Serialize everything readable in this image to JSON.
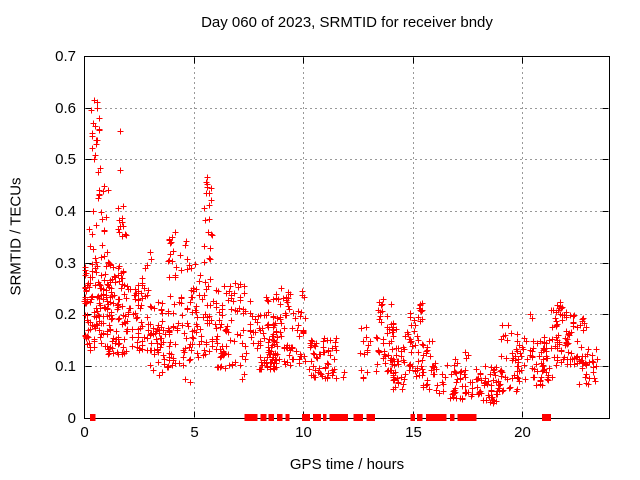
{
  "window": {
    "background": "#ffffff"
  },
  "chart_data": {
    "type": "scatter",
    "title": "Day 060 of 2023, SRMTID for receiver bndy",
    "xlabel": "GPS time / hours",
    "ylabel": "SRMTID / TECUs",
    "xlim": [
      0,
      24
    ],
    "ylim": [
      0,
      0.7
    ],
    "x_ticks": [
      0,
      5,
      10,
      15,
      20
    ],
    "x_tick_labels": [
      "0",
      "5",
      "10",
      "15",
      "20"
    ],
    "y_ticks": [
      0,
      0.1,
      0.2,
      0.3,
      0.4,
      0.5,
      0.6,
      0.7
    ],
    "y_tick_labels": [
      "0",
      "0.1",
      "0.2",
      "0.3",
      "0.4",
      "0.5",
      "0.6",
      "0.7"
    ],
    "grid": true,
    "legend": "none",
    "marker": "plus",
    "marker_color": "#ff0000",
    "axis_color": "#000000",
    "grid_color": "#999999",
    "seed": 42,
    "clusters": [
      {
        "x": [
          0.02,
          0.15
        ],
        "y": [
          0.15,
          0.31
        ],
        "n": 22,
        "skew": 1.0
      },
      {
        "x": [
          0.3,
          0.72
        ],
        "y": [
          0.55,
          0.62
        ],
        "n": 9,
        "skew": 1.0
      },
      {
        "x": [
          0.32,
          0.75
        ],
        "y": [
          0.46,
          0.545
        ],
        "n": 9,
        "skew": 1.0
      },
      {
        "x": [
          0.55,
          0.9
        ],
        "y": [
          0.4,
          0.455
        ],
        "n": 6,
        "skew": 1.0
      },
      {
        "x": [
          0.2,
          1.2
        ],
        "y": [
          0.28,
          0.4
        ],
        "n": 26,
        "skew": 1.1
      },
      {
        "x": [
          0.12,
          1.25
        ],
        "y": [
          0.13,
          0.28
        ],
        "n": 80,
        "skew": 1.0
      },
      {
        "x": [
          1.0,
          2.1
        ],
        "y": [
          0.12,
          0.3
        ],
        "n": 90,
        "skew": 1.25
      },
      {
        "x": [
          1.55,
          1.95
        ],
        "y": [
          0.3,
          0.415
        ],
        "n": 12,
        "skew": 1.0
      },
      {
        "x": [
          2.1,
          2.65
        ],
        "y": [
          0.13,
          0.26
        ],
        "n": 35,
        "skew": 1.15
      },
      {
        "x": [
          2.6,
          3.05
        ],
        "y": [
          0.13,
          0.335
        ],
        "n": 28,
        "skew": 1.3
      },
      {
        "x": [
          3.0,
          3.95
        ],
        "y": [
          0.09,
          0.225
        ],
        "n": 50,
        "skew": 1.15
      },
      {
        "x": [
          3.85,
          4.7
        ],
        "y": [
          0.1,
          0.36
        ],
        "n": 55,
        "skew": 1.45
      },
      {
        "x": [
          4.65,
          5.35
        ],
        "y": [
          0.11,
          0.3
        ],
        "n": 40,
        "skew": 1.35
      },
      {
        "x": [
          5.4,
          5.85
        ],
        "y": [
          0.25,
          0.465
        ],
        "n": 22,
        "skew": 1.0
      },
      {
        "x": [
          5.3,
          6.15
        ],
        "y": [
          0.12,
          0.25
        ],
        "n": 35,
        "skew": 1.0
      },
      {
        "x": [
          6.0,
          7.4
        ],
        "y": [
          0.095,
          0.26
        ],
        "n": 70,
        "skew": 1.2
      },
      {
        "x": [
          7.45,
          8.0
        ],
        "y": [
          0.13,
          0.235
        ],
        "n": 14,
        "skew": 1.0
      },
      {
        "x": [
          7.95,
          8.85
        ],
        "y": [
          0.09,
          0.2
        ],
        "n": 45,
        "skew": 1.1
      },
      {
        "x": [
          8.2,
          9.2
        ],
        "y": [
          0.09,
          0.24
        ],
        "n": 55,
        "skew": 1.2
      },
      {
        "x": [
          9.2,
          10.1
        ],
        "y": [
          0.1,
          0.245
        ],
        "n": 45,
        "skew": 1.2
      },
      {
        "x": [
          10.25,
          11.55
        ],
        "y": [
          0.075,
          0.155
        ],
        "n": 60,
        "skew": 1.1
      },
      {
        "x": [
          12.55,
          13.05
        ],
        "y": [
          0.07,
          0.2
        ],
        "n": 14,
        "skew": 1.0
      },
      {
        "x": [
          13.3,
          14.1
        ],
        "y": [
          0.09,
          0.23
        ],
        "n": 45,
        "skew": 1.35
      },
      {
        "x": [
          14.0,
          14.85
        ],
        "y": [
          0.05,
          0.185
        ],
        "n": 40,
        "skew": 1.15
      },
      {
        "x": [
          14.8,
          15.45
        ],
        "y": [
          0.08,
          0.205
        ],
        "n": 35,
        "skew": 1.25
      },
      {
        "x": [
          15.3,
          15.45
        ],
        "y": [
          0.19,
          0.222
        ],
        "n": 6,
        "skew": 1.0
      },
      {
        "x": [
          15.45,
          16.05
        ],
        "y": [
          0.055,
          0.15
        ],
        "n": 25,
        "skew": 1.25
      },
      {
        "x": [
          16.05,
          16.5
        ],
        "y": [
          0.045,
          0.085
        ],
        "n": 8,
        "skew": 1.0
      },
      {
        "x": [
          16.55,
          17.25
        ],
        "y": [
          0.035,
          0.115
        ],
        "n": 28,
        "skew": 1.15
      },
      {
        "x": [
          17.35,
          17.75
        ],
        "y": [
          0.04,
          0.128
        ],
        "n": 16,
        "skew": 1.15
      },
      {
        "x": [
          17.85,
          19.05
        ],
        "y": [
          0.028,
          0.1
        ],
        "n": 60,
        "skew": 1.15
      },
      {
        "x": [
          19.0,
          19.75
        ],
        "y": [
          0.05,
          0.19
        ],
        "n": 30,
        "skew": 1.45
      },
      {
        "x": [
          19.7,
          20.3
        ],
        "y": [
          0.07,
          0.165
        ],
        "n": 22,
        "skew": 1.25
      },
      {
        "x": [
          20.3,
          20.95
        ],
        "y": [
          0.06,
          0.15
        ],
        "n": 25,
        "skew": 1.25
      },
      {
        "x": [
          20.9,
          21.35
        ],
        "y": [
          0.07,
          0.165
        ],
        "n": 28,
        "skew": 1.15
      },
      {
        "x": [
          21.3,
          22.05
        ],
        "y": [
          0.1,
          0.225
        ],
        "n": 45,
        "skew": 0.8
      },
      {
        "x": [
          22.0,
          22.9
        ],
        "y": [
          0.095,
          0.2
        ],
        "n": 45,
        "skew": 1.05
      },
      {
        "x": [
          22.85,
          23.4
        ],
        "y": [
          0.065,
          0.135
        ],
        "n": 20,
        "skew": 1.15
      }
    ],
    "points": [
      [
        0.45,
        0.615
      ],
      [
        1.64,
        0.555
      ],
      [
        1.64,
        0.48
      ],
      [
        1.1,
        0.44
      ],
      [
        5.6,
        0.465
      ],
      [
        5.62,
        0.452
      ],
      [
        20.35,
        0.2
      ],
      [
        20.42,
        0.192
      ],
      [
        22.6,
        0.065
      ],
      [
        11.8,
        0.078
      ],
      [
        11.87,
        0.088
      ],
      [
        13.65,
        0.229
      ],
      [
        3.4,
        0.082
      ],
      [
        3.55,
        0.088
      ],
      [
        4.6,
        0.075
      ],
      [
        4.85,
        0.068
      ],
      [
        7.2,
        0.075
      ],
      [
        7.3,
        0.085
      ],
      [
        9.0,
        0.25
      ],
      [
        9.95,
        0.244
      ],
      [
        15.35,
        0.219
      ],
      [
        23.3,
        0.07
      ]
    ],
    "zero_marks": [
      [
        0.28,
        0.32
      ],
      [
        0.38,
        0.42
      ],
      [
        7.32,
        7.92
      ],
      [
        8.06,
        8.33
      ],
      [
        8.42,
        8.67
      ],
      [
        8.8,
        9.05
      ],
      [
        9.2,
        9.38
      ],
      [
        9.95,
        10.32
      ],
      [
        10.45,
        10.82
      ],
      [
        10.9,
        11.07
      ],
      [
        11.2,
        12.05
      ],
      [
        12.3,
        12.72
      ],
      [
        12.9,
        13.28
      ],
      [
        14.9,
        15.1
      ],
      [
        15.2,
        15.45
      ],
      [
        15.6,
        16.55
      ],
      [
        16.7,
        16.9
      ],
      [
        17.05,
        17.9
      ],
      [
        20.9,
        21.3
      ]
    ]
  }
}
